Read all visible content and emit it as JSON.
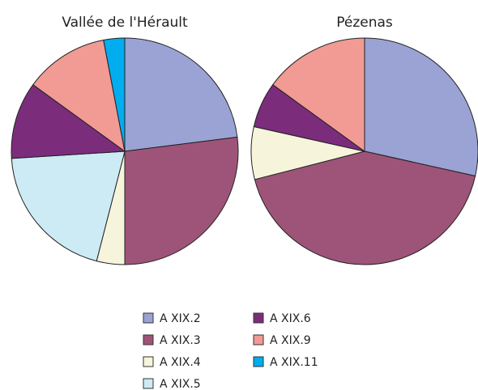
{
  "chart_data": [
    {
      "type": "pie",
      "title": "Vallée de l'Hérault",
      "categories": [
        "A XIX.2",
        "A XIX.3",
        "A XIX.4",
        "A XIX.5",
        "A XIX.6",
        "A XIX.9",
        "A XIX.11"
      ],
      "values": [
        23,
        27,
        4,
        20,
        11,
        12,
        3
      ],
      "colors": [
        "#9aa3d4",
        "#9e5478",
        "#f6f5dc",
        "#cdebf5",
        "#7b2d7c",
        "#f29a94",
        "#00adef"
      ]
    },
    {
      "type": "pie",
      "title": "Pézenas",
      "categories": [
        "A XIX.2",
        "A XIX.3",
        "A XIX.4",
        "A XIX.5",
        "A XIX.6",
        "A XIX.9",
        "A XIX.11"
      ],
      "values": [
        28.5,
        42.5,
        7.5,
        0,
        6.5,
        15,
        0
      ],
      "colors": [
        "#9aa3d4",
        "#9e5478",
        "#f6f5dc",
        "#cdebf5",
        "#7b2d7c",
        "#f29a94",
        "#00adef"
      ]
    }
  ]
}
